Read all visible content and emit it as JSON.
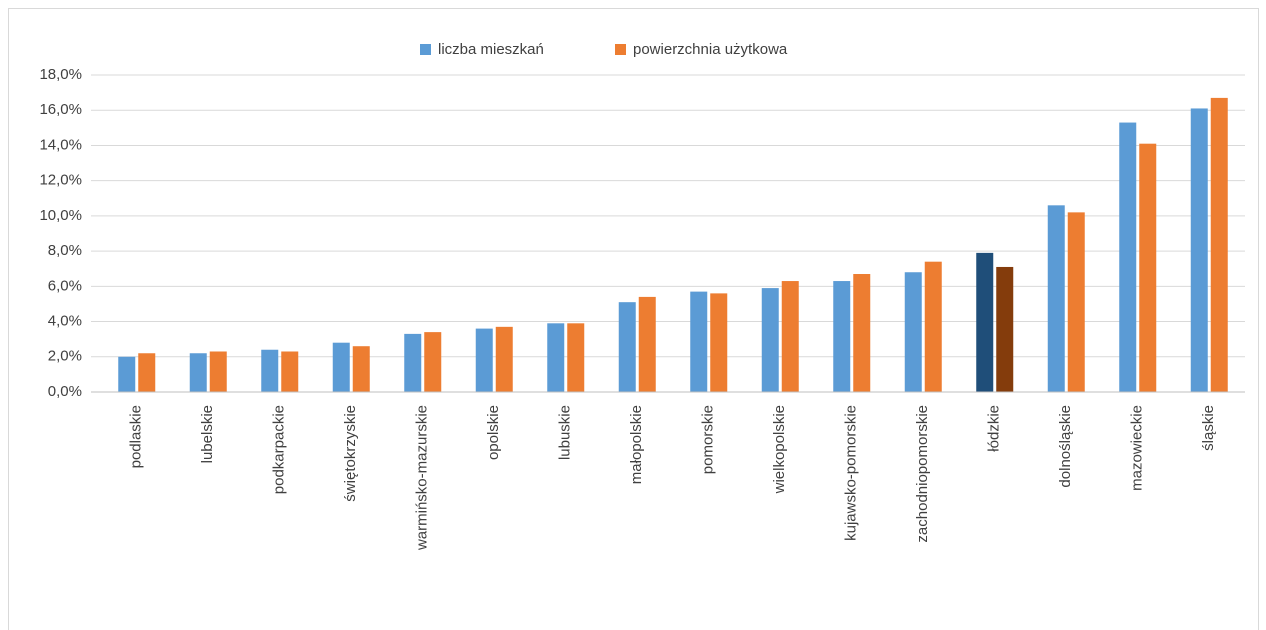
{
  "chart_data": {
    "type": "bar",
    "categories": [
      "podlaskie",
      "lubelskie",
      "podkarpackie",
      "świętokrzyskie",
      "warmińsko-mazurskie",
      "opolskie",
      "lubuskie",
      "małopolskie",
      "pomorskie",
      "wielkopolskie",
      "kujawsko-pomorskie",
      "zachodniopomorskie",
      "łódzkie",
      "dolnośląskie",
      "mazowieckie",
      "śląskie"
    ],
    "series": [
      {
        "name": "liczba mieszkań",
        "color": "#5b9bd5",
        "colors": [
          "#5b9bd5",
          "#5b9bd5",
          "#5b9bd5",
          "#5b9bd5",
          "#5b9bd5",
          "#5b9bd5",
          "#5b9bd5",
          "#5b9bd5",
          "#5b9bd5",
          "#5b9bd5",
          "#5b9bd5",
          "#5b9bd5",
          "#1f4e79",
          "#5b9bd5",
          "#5b9bd5",
          "#5b9bd5"
        ],
        "values": [
          2.0,
          2.2,
          2.4,
          2.8,
          3.3,
          3.6,
          3.9,
          5.1,
          5.7,
          5.9,
          6.3,
          6.8,
          7.9,
          10.6,
          15.3,
          16.1
        ]
      },
      {
        "name": "powierzchnia użytkowa",
        "color": "#ed7d31",
        "colors": [
          "#ed7d31",
          "#ed7d31",
          "#ed7d31",
          "#ed7d31",
          "#ed7d31",
          "#ed7d31",
          "#ed7d31",
          "#ed7d31",
          "#ed7d31",
          "#ed7d31",
          "#ed7d31",
          "#ed7d31",
          "#843c0c",
          "#ed7d31",
          "#ed7d31",
          "#ed7d31"
        ],
        "values": [
          2.2,
          2.3,
          2.3,
          2.6,
          3.4,
          3.7,
          3.9,
          5.4,
          5.6,
          6.3,
          6.7,
          7.4,
          7.1,
          10.2,
          14.1,
          16.7
        ]
      }
    ],
    "ylim": [
      0,
      18
    ],
    "yticks": [
      {
        "value": 0,
        "label": "0,0%"
      },
      {
        "value": 2,
        "label": "2,0%"
      },
      {
        "value": 4,
        "label": "4,0%"
      },
      {
        "value": 6,
        "label": "6,0%"
      },
      {
        "value": 8,
        "label": "8,0%"
      },
      {
        "value": 10,
        "label": "10,0%"
      },
      {
        "value": 12,
        "label": "12,0%"
      },
      {
        "value": 14,
        "label": "14,0%"
      },
      {
        "value": 16,
        "label": "16,0%"
      },
      {
        "value": 18,
        "label": "18,0%"
      }
    ],
    "grid": true,
    "legend": "top"
  }
}
